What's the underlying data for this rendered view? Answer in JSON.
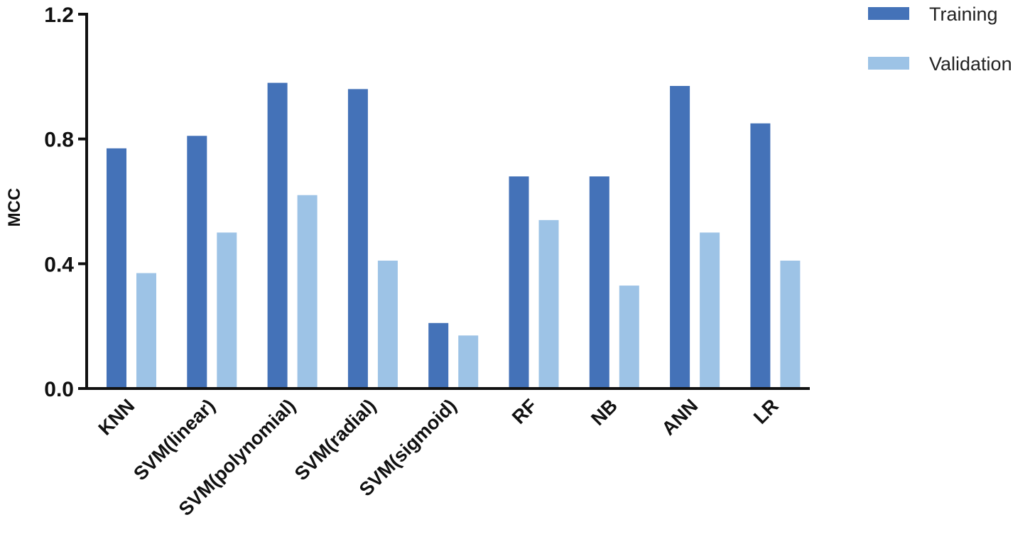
{
  "chart_data": {
    "type": "bar",
    "title": "",
    "xlabel": "",
    "ylabel": "MCC",
    "ylim": [
      0,
      1.2
    ],
    "yticks": [
      "0.0",
      "0.4",
      "0.8",
      "1.2"
    ],
    "categories": [
      "KNN",
      "SVM(linear)",
      "SVM(polynomial)",
      "SVM(radial)",
      "SVM(sigmoid)",
      "RF",
      "NB",
      "ANN",
      "LR"
    ],
    "series": [
      {
        "name": "Training",
        "color": "#4472b8",
        "values": [
          0.77,
          0.81,
          0.98,
          0.96,
          0.21,
          0.68,
          0.68,
          0.97,
          0.85
        ]
      },
      {
        "name": "Validation",
        "color": "#9dc3e6",
        "values": [
          0.37,
          0.5,
          0.62,
          0.41,
          0.17,
          0.54,
          0.33,
          0.5,
          0.41
        ]
      }
    ],
    "grid": false,
    "legend_position": "top-right"
  }
}
